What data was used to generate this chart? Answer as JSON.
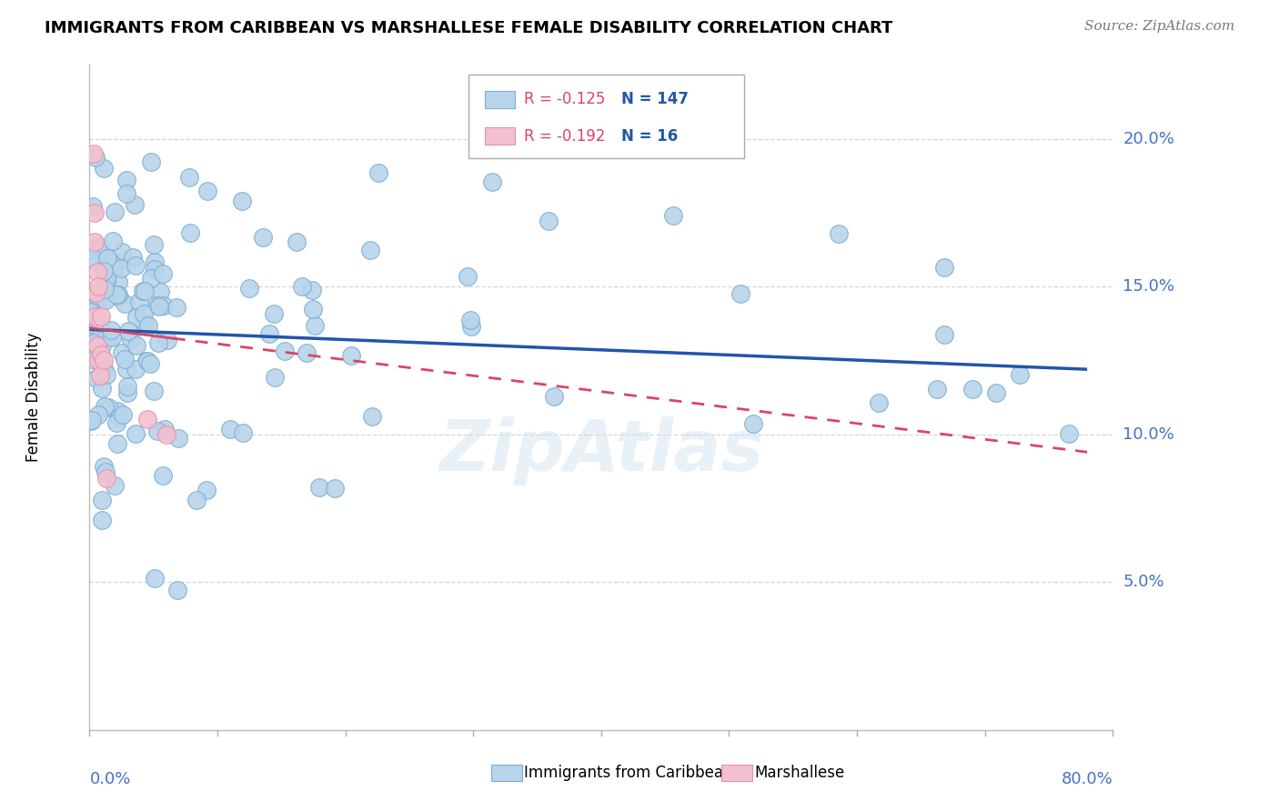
{
  "title": "IMMIGRANTS FROM CARIBBEAN VS MARSHALLESE FEMALE DISABILITY CORRELATION CHART",
  "source": "Source: ZipAtlas.com",
  "ylabel": "Female Disability",
  "watermark": "ZipAtlas",
  "blue_r": -0.125,
  "blue_n": 147,
  "pink_r": -0.192,
  "pink_n": 16,
  "blue_color": "#b8d4ea",
  "blue_edge": "#7aadd4",
  "pink_color": "#f2c0cf",
  "pink_edge": "#e890aa",
  "trend_blue": "#2255aa",
  "trend_pink": "#dd4466",
  "bg_color": "#ffffff",
  "grid_color": "#cccccc",
  "axis_label_color": "#4472c4",
  "xlim": [
    0.0,
    0.8
  ],
  "ylim": [
    0.0,
    0.22
  ],
  "blue_trend_start_y": 0.1355,
  "blue_trend_end_y": 0.122,
  "pink_trend_start_y": 0.136,
  "pink_trend_end_y": 0.094
}
